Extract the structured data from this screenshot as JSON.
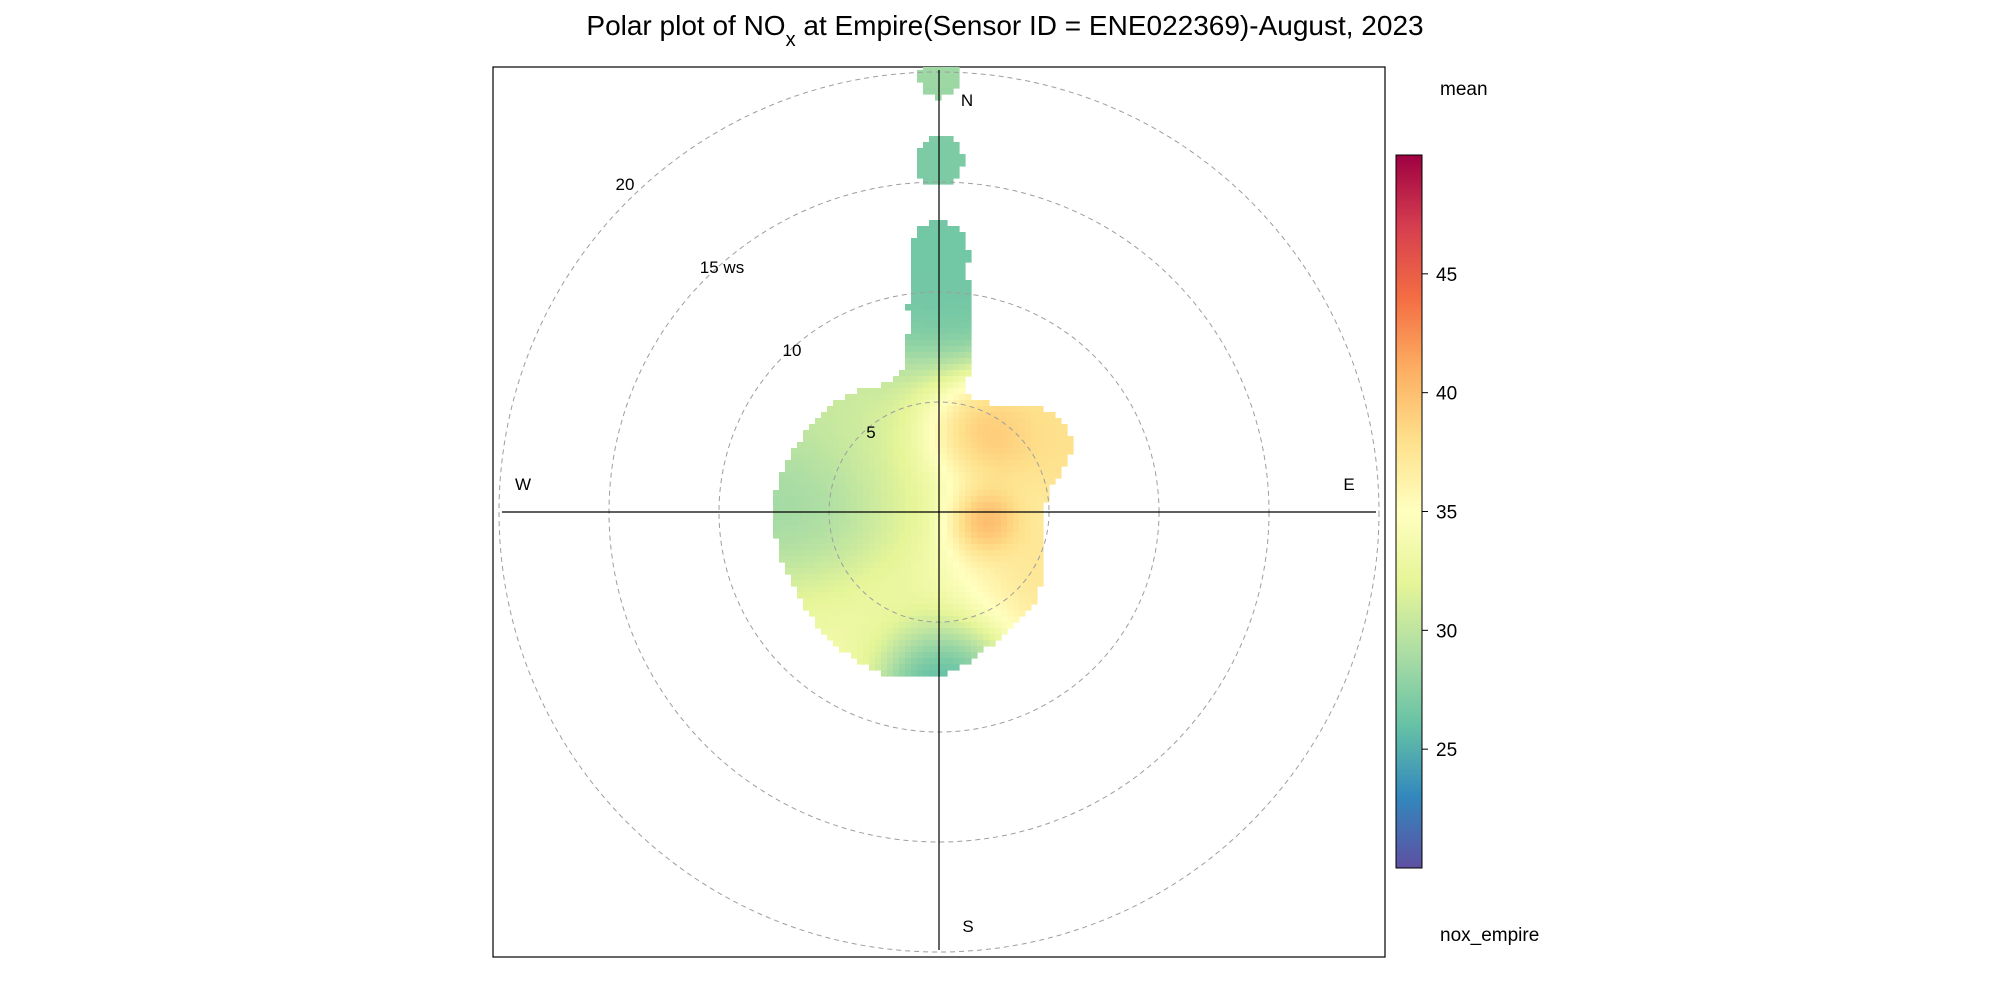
{
  "chart_data": {
    "type": "polar",
    "title": {
      "prefix": "Polar plot of NO",
      "subscript": "x",
      "suffix": " at Empire(Sensor ID = ENE022369)-August, 2023"
    },
    "pollutant": "nox_empire",
    "statistic": "mean",
    "radial_axis": {
      "variable": "ws",
      "ticks": [
        5,
        10,
        15,
        20
      ],
      "tick_labels": [
        "5",
        "10",
        "15 ws",
        "20"
      ],
      "max": 20
    },
    "directions": [
      "N",
      "E",
      "S",
      "W"
    ],
    "colorbar": {
      "palette": [
        "#5E4FA2",
        "#3288BD",
        "#66C2A5",
        "#ABDDA4",
        "#E6F598",
        "#FFFFBF",
        "#FEE08B",
        "#FDAE61",
        "#F46D43",
        "#D53E4F",
        "#9E0142"
      ],
      "min": 20,
      "max": 50,
      "ticks": [
        25,
        30,
        35,
        40,
        45
      ],
      "tick_labels": [
        "25",
        "30",
        "35",
        "40",
        "45"
      ]
    },
    "surface_blobs": [
      {
        "direction_deg": 0,
        "ws": 9.5,
        "value": 26.5,
        "spread": 2.4
      },
      {
        "direction_deg": 0,
        "ws": 16.5,
        "value": 27.0,
        "spread": 1.4
      },
      {
        "direction_deg": 0,
        "ws": 19.5,
        "value": 28.5,
        "spread": 1.0
      },
      {
        "direction_deg": 25,
        "ws": 3.5,
        "value": 45.0,
        "spread": 1.5
      },
      {
        "direction_deg": 50,
        "ws": 5.5,
        "value": 38.0,
        "spread": 2.0
      },
      {
        "direction_deg": 102,
        "ws": 1.8,
        "value": 49.0,
        "spread": 1.0
      },
      {
        "direction_deg": 135,
        "ws": 3.5,
        "value": 38.0,
        "spread": 2.0
      },
      {
        "direction_deg": 180,
        "ws": 5.5,
        "value": 32.0,
        "spread": 2.0
      },
      {
        "direction_deg": 180,
        "ws": 7.0,
        "value": 21.0,
        "spread": 1.4
      },
      {
        "direction_deg": 225,
        "ws": 5.0,
        "value": 33.5,
        "spread": 2.5
      },
      {
        "direction_deg": 265,
        "ws": 5.0,
        "value": 27.0,
        "spread": 2.0
      },
      {
        "direction_deg": 310,
        "ws": 4.5,
        "value": 30.0,
        "spread": 2.5
      },
      {
        "direction_deg": 340,
        "ws": 2.5,
        "value": 33.0,
        "spread": 2.5
      },
      {
        "direction_deg": 0,
        "ws": 0.0,
        "value": 31.5,
        "spread": 2.0
      }
    ],
    "coverage_blobs": [
      {
        "direction_deg": 0,
        "ws": 9.5,
        "spread": 2.3
      },
      {
        "direction_deg": 0,
        "ws": 7.0,
        "spread": 2.3
      },
      {
        "direction_deg": 0,
        "ws": 12.0,
        "spread": 2.2
      },
      {
        "direction_deg": 0,
        "ws": 16.0,
        "spread": 2.0
      },
      {
        "direction_deg": 0,
        "ws": 19.8,
        "spread": 1.7
      },
      {
        "direction_deg": 0,
        "ws": 0.0,
        "spread": 5.2
      },
      {
        "direction_deg": 30,
        "ws": 3.5,
        "spread": 2.6
      },
      {
        "direction_deg": 55,
        "ws": 5.5,
        "spread": 2.6
      },
      {
        "direction_deg": 100,
        "ws": 2.5,
        "spread": 3.0
      },
      {
        "direction_deg": 140,
        "ws": 4.0,
        "spread": 3.0
      },
      {
        "direction_deg": 180,
        "ws": 5.0,
        "spread": 3.5
      },
      {
        "direction_deg": 200,
        "ws": 5.5,
        "spread": 3.0
      },
      {
        "direction_deg": 225,
        "ws": 5.5,
        "spread": 3.2
      },
      {
        "direction_deg": 255,
        "ws": 5.5,
        "spread": 3.0
      },
      {
        "direction_deg": 280,
        "ws": 5.5,
        "spread": 3.0
      },
      {
        "direction_deg": 310,
        "ws": 5.0,
        "spread": 3.0
      },
      {
        "direction_deg": 335,
        "ws": 4.0,
        "spread": 3.0
      }
    ]
  }
}
